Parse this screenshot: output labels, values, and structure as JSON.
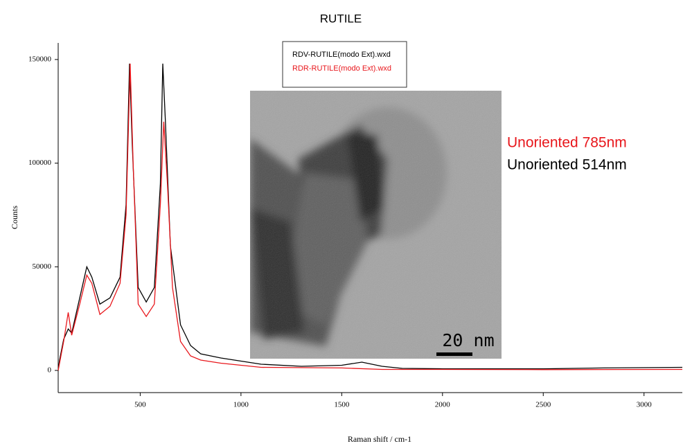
{
  "chart_data": {
    "type": "line",
    "title": "RUTILE",
    "x_label": "Raman shift / cm-1",
    "y_label": "Counts",
    "xlim": [
      93,
      3190
    ],
    "ylim": [
      -10700,
      158000
    ],
    "xticks": [
      500,
      1000,
      1500,
      2000,
      2500,
      3000
    ],
    "yticks": [
      0,
      50000,
      100000,
      150000
    ],
    "grid": false,
    "series": [
      {
        "name": "RDV-RUTILE(modo Ext).wxd",
        "color": "#000000",
        "x": [
          93,
          100,
          120,
          143,
          160,
          200,
          235,
          260,
          300,
          350,
          400,
          430,
          447,
          460,
          490,
          530,
          570,
          600,
          612,
          625,
          650,
          700,
          750,
          800,
          900,
          1000,
          1100,
          1300,
          1500,
          1600,
          1700,
          1800,
          2000,
          2500,
          2800,
          3190
        ],
        "values": [
          0,
          5000,
          15000,
          20000,
          18000,
          35000,
          50000,
          45000,
          32000,
          35000,
          45000,
          80000,
          148000,
          110000,
          40000,
          33000,
          40000,
          90000,
          148000,
          120000,
          60000,
          22000,
          12000,
          8000,
          6000,
          4500,
          3000,
          2000,
          2500,
          4000,
          2000,
          1000,
          800,
          800,
          1200,
          1500
        ]
      },
      {
        "name": "RDR-RUTILE(modo Ext).wxd",
        "color": "#e8161b",
        "x": [
          93,
          120,
          143,
          160,
          200,
          235,
          260,
          300,
          350,
          400,
          430,
          450,
          465,
          490,
          530,
          570,
          600,
          617,
          635,
          660,
          700,
          750,
          800,
          900,
          1000,
          1100,
          1500,
          1700,
          2000,
          2500,
          3190
        ],
        "values": [
          0,
          14000,
          28000,
          17000,
          32000,
          46000,
          42000,
          27000,
          31000,
          42000,
          75000,
          148000,
          100000,
          32000,
          26000,
          32000,
          80000,
          120000,
          90000,
          40000,
          14000,
          7000,
          5000,
          3500,
          2500,
          1500,
          1200,
          500,
          500,
          400,
          500
        ]
      }
    ],
    "annotations": [
      {
        "text": "Unoriented 785nm",
        "color": "#e8161b"
      },
      {
        "text": "Unoriented 514nm",
        "color": "#000000"
      }
    ],
    "inset_scale_label": "20 nm"
  }
}
